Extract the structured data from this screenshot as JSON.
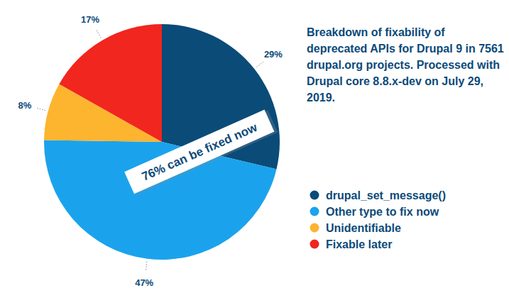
{
  "chart_data": {
    "type": "pie",
    "title": "Breakdown of fixability of deprecated APIs for Drupal 9 in 7561 drupal.org projects. Processed with Drupal core 8.8.x-dev on July 29, 2019.",
    "categories": [
      "drupal_set_message()",
      "Other type to fix now",
      "Unidentifiable",
      "Fixable later"
    ],
    "values": [
      29,
      47,
      8,
      17
    ],
    "value_labels": [
      "29%",
      "47%",
      "8%",
      "17%"
    ],
    "colors": [
      "#0a4b78",
      "#1aa3ec",
      "#fdb42f",
      "#f0261f"
    ],
    "data_labels": true,
    "legend": "right",
    "annotation": "76% can be fixed now"
  }
}
